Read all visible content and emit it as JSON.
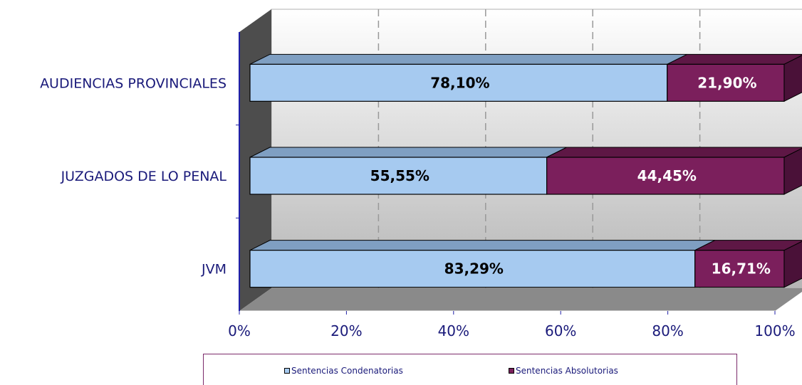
{
  "chart_data": {
    "type": "bar",
    "orientation": "horizontal",
    "stacked": "percent",
    "three_d": true,
    "categories": [
      "AUDIENCIAS PROVINCIALES",
      "JUZGADOS DE LO PENAL",
      "JVM"
    ],
    "series": [
      {
        "name": "Sentencias Condenatorias",
        "values": [
          78.1,
          55.55,
          83.29
        ],
        "labels": [
          "78,10%",
          "55,55%",
          "83,29%"
        ],
        "color": "#a6caf0"
      },
      {
        "name": "Sentencias Absolutorias",
        "values": [
          21.9,
          44.45,
          16.71
        ],
        "labels": [
          "21,90%",
          "44,45%",
          "16,71%"
        ],
        "color": "#7b1f5c"
      }
    ],
    "x_ticks": [
      "0%",
      "20%",
      "40%",
      "60%",
      "80%",
      "100%"
    ],
    "xlim": [
      0,
      100
    ],
    "grid": "vertical dashed",
    "legend_position": "bottom"
  },
  "colors": {
    "axis_text": "#1a1a7a",
    "floor": "#8a8a8a",
    "wall_side": "#4d4d4d",
    "gridline": "#999999"
  }
}
